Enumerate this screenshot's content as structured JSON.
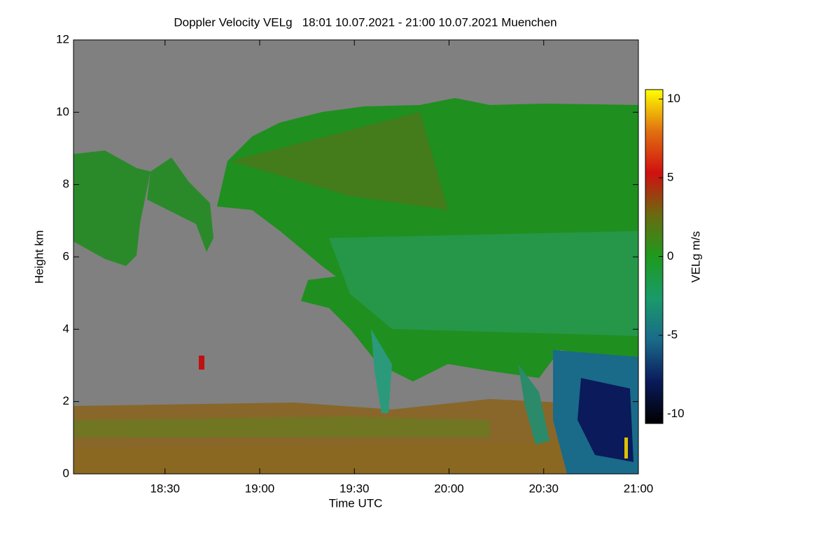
{
  "chart_data": {
    "type": "heatmap",
    "title": "Doppler Velocity VELg   18:01 10.07.2021 - 21:00 10.07.2021 Muenchen",
    "xlabel": "Time UTC",
    "ylabel": "Height km",
    "xlim": [
      18.0167,
      21.0
    ],
    "xticks": [
      {
        "value": 18.5,
        "label": "18:30"
      },
      {
        "value": 19.0,
        "label": "19:00"
      },
      {
        "value": 19.5,
        "label": "19:30"
      },
      {
        "value": 20.0,
        "label": "20:00"
      },
      {
        "value": 20.5,
        "label": "20:30"
      },
      {
        "value": 21.0,
        "label": "21:00"
      }
    ],
    "ylim": [
      0,
      12
    ],
    "yticks": [
      0,
      2,
      4,
      6,
      8,
      10,
      12
    ],
    "missing_color": "#808080",
    "colorbar": {
      "label": "VELg m/s",
      "lim": [
        -10.6,
        10.6
      ],
      "ticks": [
        -10,
        -5,
        0,
        5,
        10
      ],
      "colors": [
        "#000000",
        "#0a1a5a",
        "#1a6a8a",
        "#1a9a6a",
        "#1e9a1e",
        "#6a6a10",
        "#d01010",
        "#e07010",
        "#ffff00"
      ]
    }
  }
}
